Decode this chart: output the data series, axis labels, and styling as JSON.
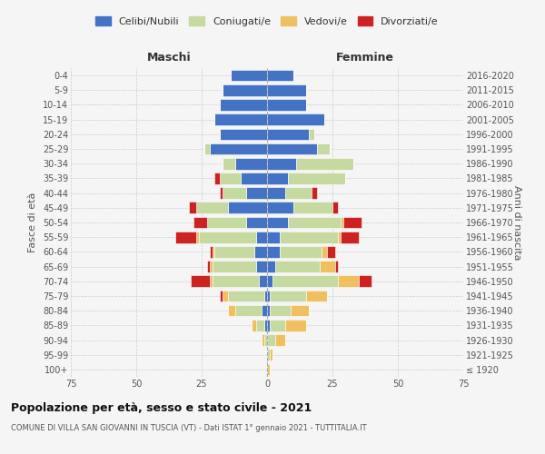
{
  "age_groups": [
    "100+",
    "95-99",
    "90-94",
    "85-89",
    "80-84",
    "75-79",
    "70-74",
    "65-69",
    "60-64",
    "55-59",
    "50-54",
    "45-49",
    "40-44",
    "35-39",
    "30-34",
    "25-29",
    "20-24",
    "15-19",
    "10-14",
    "5-9",
    "0-4"
  ],
  "birth_years": [
    "≤ 1920",
    "1921-1925",
    "1926-1930",
    "1931-1935",
    "1936-1940",
    "1941-1945",
    "1946-1950",
    "1951-1955",
    "1956-1960",
    "1961-1965",
    "1966-1970",
    "1971-1975",
    "1976-1980",
    "1981-1985",
    "1986-1990",
    "1991-1995",
    "1996-2000",
    "2001-2005",
    "2006-2010",
    "2011-2015",
    "2016-2020"
  ],
  "colors": {
    "celibi": "#4472c4",
    "coniugati": "#c5d9a0",
    "vedovi": "#f0c060",
    "divorziati": "#cc2222"
  },
  "maschi": {
    "celibi": [
      0,
      0,
      0,
      1,
      2,
      1,
      3,
      4,
      5,
      4,
      8,
      15,
      8,
      10,
      12,
      22,
      18,
      20,
      18,
      17,
      14
    ],
    "coniugati": [
      0,
      0,
      1,
      3,
      10,
      14,
      18,
      17,
      15,
      22,
      15,
      12,
      9,
      8,
      5,
      2,
      0,
      0,
      0,
      0,
      0
    ],
    "vedovi": [
      0,
      0,
      1,
      2,
      3,
      2,
      1,
      1,
      1,
      1,
      0,
      0,
      0,
      0,
      0,
      0,
      0,
      0,
      0,
      0,
      0
    ],
    "divorziati": [
      0,
      0,
      0,
      0,
      0,
      1,
      7,
      1,
      1,
      8,
      5,
      3,
      1,
      2,
      0,
      0,
      0,
      0,
      0,
      0,
      0
    ]
  },
  "femmine": {
    "celibi": [
      0,
      0,
      0,
      1,
      1,
      1,
      2,
      3,
      5,
      5,
      8,
      10,
      7,
      8,
      11,
      19,
      16,
      22,
      15,
      15,
      10
    ],
    "coniugati": [
      0,
      1,
      3,
      6,
      8,
      14,
      25,
      17,
      16,
      22,
      20,
      15,
      10,
      22,
      22,
      5,
      2,
      0,
      0,
      0,
      0
    ],
    "vedovi": [
      1,
      1,
      4,
      8,
      7,
      8,
      8,
      6,
      2,
      1,
      1,
      0,
      0,
      0,
      0,
      0,
      0,
      0,
      0,
      0,
      0
    ],
    "divorziati": [
      0,
      0,
      0,
      0,
      0,
      0,
      5,
      1,
      3,
      7,
      7,
      2,
      2,
      0,
      0,
      0,
      0,
      0,
      0,
      0,
      0
    ]
  },
  "xlim": 75,
  "title": "Popolazione per età, sesso e stato civile - 2021",
  "subtitle": "COMUNE DI VILLA SAN GIOVANNI IN TUSCIA (VT) - Dati ISTAT 1° gennaio 2021 - TUTTITALIA.IT",
  "ylabel_left": "Fasce di età",
  "ylabel_right": "Anni di nascita",
  "xlabel_maschi": "Maschi",
  "xlabel_femmine": "Femmine",
  "legend_labels": [
    "Celibi/Nubili",
    "Coniugati/e",
    "Vedovi/e",
    "Divorziati/e"
  ],
  "bg_color": "#f5f5f5",
  "grid_color": "#cccccc"
}
